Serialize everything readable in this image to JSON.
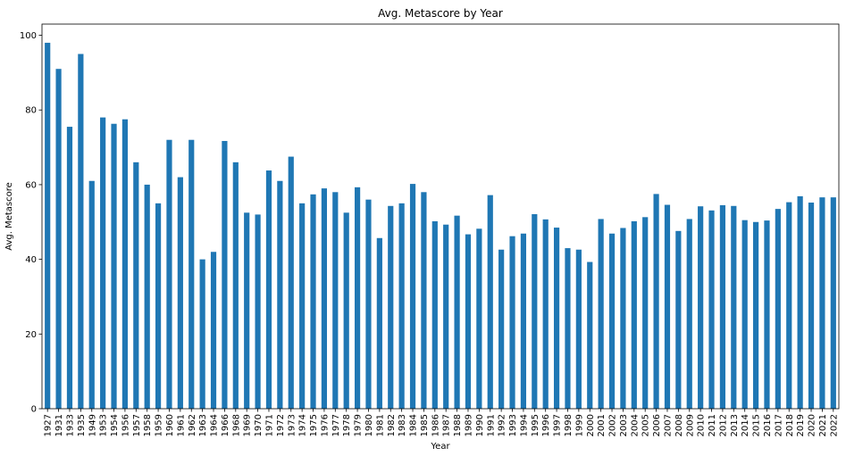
{
  "chart_data": {
    "type": "bar",
    "title": "Avg. Metascore by Year",
    "xlabel": "Year",
    "ylabel": "Avg. Metascore",
    "ylim": [
      0,
      103
    ],
    "yticks": [
      0,
      20,
      40,
      60,
      80,
      100
    ],
    "grid": false,
    "legend": "none",
    "bar_color": "#1f77b4",
    "categories": [
      "1927",
      "1931",
      "1933",
      "1935",
      "1949",
      "1953",
      "1954",
      "1956",
      "1957",
      "1958",
      "1959",
      "1960",
      "1961",
      "1962",
      "1963",
      "1964",
      "1966",
      "1968",
      "1969",
      "1970",
      "1971",
      "1972",
      "1973",
      "1974",
      "1975",
      "1976",
      "1977",
      "1978",
      "1979",
      "1980",
      "1981",
      "1982",
      "1983",
      "1984",
      "1985",
      "1986",
      "1987",
      "1988",
      "1989",
      "1990",
      "1991",
      "1992",
      "1993",
      "1994",
      "1995",
      "1996",
      "1997",
      "1998",
      "1999",
      "2000",
      "2001",
      "2002",
      "2003",
      "2004",
      "2005",
      "2006",
      "2007",
      "2008",
      "2009",
      "2010",
      "2011",
      "2012",
      "2013",
      "2014",
      "2015",
      "2016",
      "2017",
      "2018",
      "2019",
      "2020",
      "2021",
      "2022"
    ],
    "values": [
      98,
      91,
      75.5,
      95,
      61,
      78,
      76.3,
      77.5,
      66,
      60,
      55,
      72,
      62,
      72,
      40,
      42,
      71.7,
      66,
      52.5,
      52,
      63.8,
      61,
      67.5,
      55,
      57.4,
      59,
      58,
      52.5,
      59.3,
      56,
      45.7,
      54.3,
      55,
      60.2,
      58,
      50.2,
      49.3,
      51.7,
      46.7,
      48.2,
      57.2,
      42.6,
      46.2,
      46.9,
      52.1,
      50.7,
      48.5,
      43,
      42.6,
      39.3,
      50.8,
      46.9,
      48.4,
      50.2,
      51.3,
      57.5,
      54.6,
      47.6,
      50.8,
      54.2,
      53.1,
      54.5,
      54.3,
      50.5,
      50,
      50.4,
      53.5,
      55.3,
      56.9,
      55.2,
      56.6,
      56.6
    ]
  }
}
